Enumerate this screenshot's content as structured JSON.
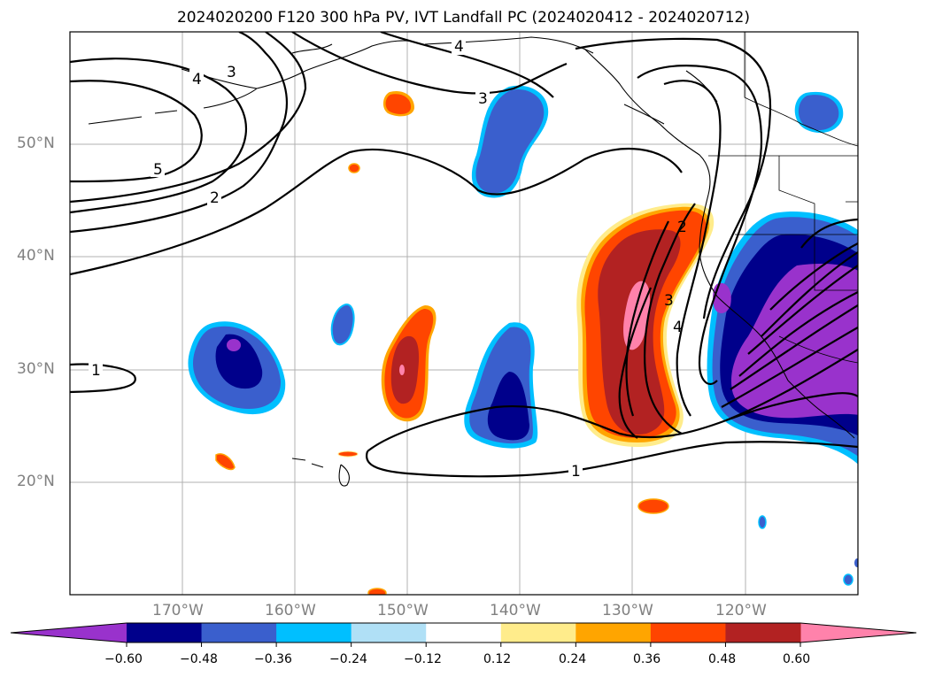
{
  "title": "2024020200 F120 300 hPa PV, IVT Landfall PC (2024020412 - 2024020712)",
  "lat_labels": [
    "50°N",
    "40°N",
    "30°N",
    "20°N"
  ],
  "lon_labels": [
    "170°W",
    "160°W",
    "150°W",
    "140°W",
    "130°W",
    "120°W"
  ],
  "colorbar": {
    "ticks": [
      "−0.60",
      "−0.48",
      "−0.36",
      "−0.24",
      "−0.12",
      "0.12",
      "0.24",
      "0.36",
      "0.48",
      "0.60"
    ],
    "colors": [
      "#9932cc",
      "#00008b",
      "#3a5fcd",
      "#00bfff",
      "#b0e0f6",
      "#ffffff",
      "#ffec8b",
      "#ffa500",
      "#ff4500",
      "#b22222",
      "#ff82ab"
    ]
  },
  "contour_labels": {
    "a": "3",
    "b": "4",
    "c": "4",
    "d": "3",
    "e": "5",
    "f": "2",
    "g": "1",
    "h": "2",
    "i": "3",
    "j": "4",
    "k": "1"
  }
}
